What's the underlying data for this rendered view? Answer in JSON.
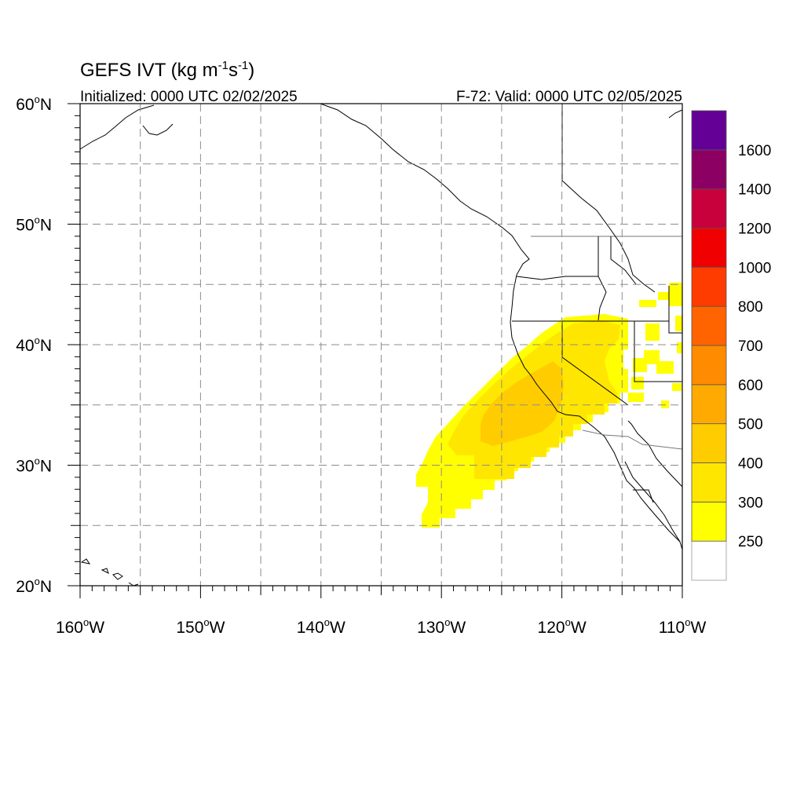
{
  "title": {
    "text": "GEFS IVT (kg m",
    "sup1": "-1",
    "mid": "s",
    "sup2": "-1",
    "close": ")"
  },
  "initialized": "Initialized: 0000 UTC 02/02/2025",
  "valid": "F-72: Valid: 0000 UTC 02/05/2025",
  "lat_labels": [
    {
      "deg": "60",
      "hemi": "N"
    },
    {
      "deg": "50",
      "hemi": "N"
    },
    {
      "deg": "40",
      "hemi": "N"
    },
    {
      "deg": "30",
      "hemi": "N"
    },
    {
      "deg": "20",
      "hemi": "N"
    }
  ],
  "lon_labels": [
    {
      "deg": "160",
      "hemi": "W"
    },
    {
      "deg": "150",
      "hemi": "W"
    },
    {
      "deg": "140",
      "hemi": "W"
    },
    {
      "deg": "130",
      "hemi": "W"
    },
    {
      "deg": "120",
      "hemi": "W"
    },
    {
      "deg": "110",
      "hemi": "W"
    }
  ],
  "extent": {
    "lon_min": -160,
    "lon_max": -110,
    "lat_min": 20,
    "lat_max": 60
  },
  "colorbar": {
    "colors": [
      "#ffffff",
      "#ffff00",
      "#ffe600",
      "#ffcc00",
      "#ffaa00",
      "#ff8c00",
      "#ff6400",
      "#ff3c00",
      "#f00000",
      "#c8003c",
      "#8c0064",
      "#640096"
    ],
    "labels": [
      "250",
      "300",
      "400",
      "500",
      "600",
      "700",
      "800",
      "1000",
      "1200",
      "1400",
      "1600"
    ]
  },
  "ivt_field": {
    "levels": [
      "250-300",
      "300-400",
      "400-500"
    ],
    "colors": [
      "#ffff00",
      "#ffe600",
      "#ffcc00"
    ]
  }
}
